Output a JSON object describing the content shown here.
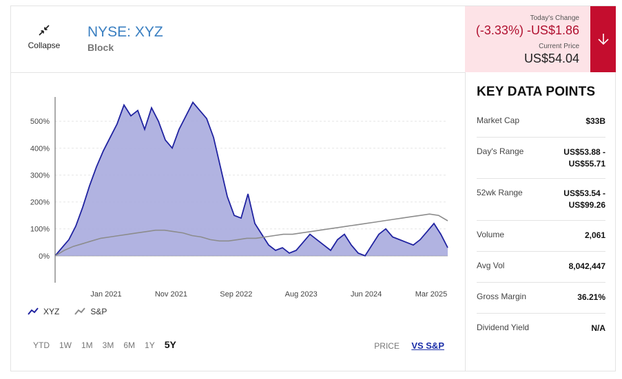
{
  "header": {
    "collapse_label": "Collapse",
    "ticker": "NYSE: XYZ",
    "company": "Block"
  },
  "quote": {
    "change_label": "Today's Change",
    "change_value": "(-3.33%) -US$1.86",
    "price_label": "Current Price",
    "price_value": "US$54.04",
    "accent_color": "#c40d2e",
    "down_icon": "arrow-down-icon"
  },
  "key_data": {
    "title": "KEY DATA POINTS",
    "rows": [
      {
        "label": "Market Cap",
        "value": "$33B"
      },
      {
        "label": "Day's Range",
        "value": "US$53.88 - US$55.71"
      },
      {
        "label": "52wk Range",
        "value": "US$53.54 - US$99.26"
      },
      {
        "label": "Volume",
        "value": "2,061"
      },
      {
        "label": "Avg Vol",
        "value": "8,042,447"
      },
      {
        "label": "Gross Margin",
        "value": "36.21%"
      },
      {
        "label": "Dividend Yield",
        "value": "N/A"
      }
    ]
  },
  "legend": {
    "series1": "XYZ",
    "series2": "S&P"
  },
  "ranges": [
    "YTD",
    "1W",
    "1M",
    "3M",
    "6M",
    "1Y",
    "5Y"
  ],
  "active_range": "5Y",
  "modes": {
    "price": "PRICE",
    "vs": "VS S&P"
  },
  "chart_data": {
    "type": "area",
    "y_ticks": [
      "0%",
      "100%",
      "200%",
      "300%",
      "400%",
      "500%"
    ],
    "ylim": [
      -100,
      590
    ],
    "x_tick_labels": [
      "Jan 2021",
      "Nov 2021",
      "Sep 2022",
      "Aug 2023",
      "Jun 2024",
      "Mar 2025"
    ],
    "grid": true,
    "series": [
      {
        "name": "XYZ",
        "color": "#1f22a0",
        "fill": "#a9abde",
        "values": [
          0,
          30,
          60,
          110,
          180,
          260,
          330,
          390,
          440,
          490,
          560,
          520,
          540,
          470,
          550,
          500,
          430,
          400,
          470,
          520,
          570,
          540,
          510,
          440,
          330,
          220,
          150,
          140,
          230,
          120,
          80,
          40,
          20,
          30,
          10,
          20,
          50,
          80,
          60,
          40,
          20,
          60,
          80,
          40,
          10,
          0,
          40,
          80,
          100,
          70,
          60,
          50,
          40,
          60,
          90,
          120,
          80,
          30
        ]
      },
      {
        "name": "S&P",
        "color": "#8c8c8c",
        "values": [
          0,
          20,
          35,
          45,
          55,
          65,
          70,
          75,
          80,
          85,
          90,
          95,
          95,
          90,
          85,
          75,
          70,
          60,
          55,
          55,
          60,
          65,
          65,
          70,
          75,
          80,
          80,
          85,
          90,
          95,
          100,
          105,
          110,
          115,
          120,
          125,
          130,
          135,
          140,
          145,
          150,
          155,
          150,
          130
        ]
      }
    ]
  }
}
